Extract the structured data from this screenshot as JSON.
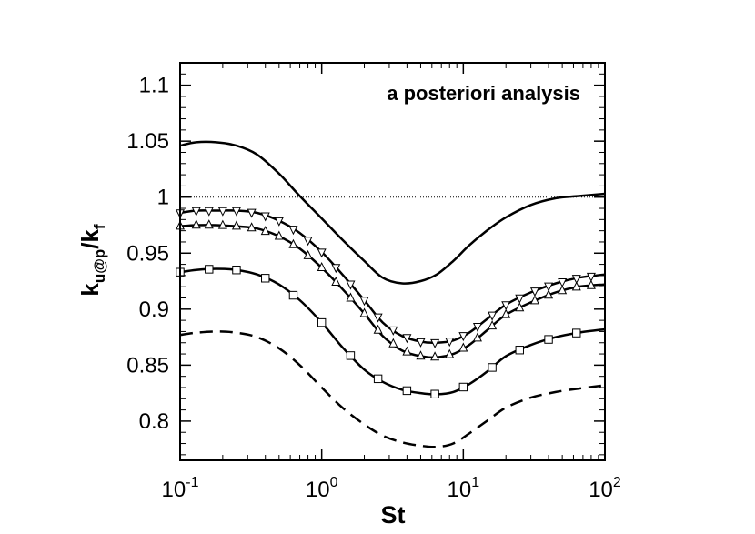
{
  "chart_data": {
    "type": "line",
    "title": "",
    "annotation": "a posteriori analysis",
    "xlabel": "St",
    "ylabel": {
      "main": "k",
      "sub1": "u@p",
      "slash": "/k",
      "sub2": "f"
    },
    "xscale": "log",
    "xlim": [
      0.1,
      100
    ],
    "ylim": [
      0.765,
      1.12
    ],
    "x_ticks": [
      {
        "value": 0.1,
        "base": "10",
        "exp": "-1"
      },
      {
        "value": 1,
        "base": "10",
        "exp": "0"
      },
      {
        "value": 10,
        "base": "10",
        "exp": "1"
      },
      {
        "value": 100,
        "base": "10",
        "exp": "2"
      }
    ],
    "y_ticks": [
      {
        "value": 0.8,
        "label": "0.8"
      },
      {
        "value": 0.85,
        "label": "0.85"
      },
      {
        "value": 0.9,
        "label": "0.9"
      },
      {
        "value": 0.95,
        "label": "0.95"
      },
      {
        "value": 1.0,
        "label": "1"
      },
      {
        "value": 1.05,
        "label": "1.05"
      },
      {
        "value": 1.1,
        "label": "1.1"
      }
    ],
    "reference_line": {
      "y": 1.0,
      "style": "dotted"
    },
    "grid": false,
    "legend": "none",
    "series": [
      {
        "style": "solid",
        "marker": "none",
        "x": [
          0.1,
          0.13,
          0.18,
          0.25,
          0.35,
          0.5,
          0.7,
          1.0,
          1.4,
          2.0,
          2.7,
          3.7,
          5.0,
          6.5,
          8.5,
          11,
          15,
          20,
          30,
          45,
          65,
          100
        ],
        "y": [
          1.046,
          1.049,
          1.049,
          1.046,
          1.038,
          1.021,
          1.001,
          0.981,
          0.962,
          0.943,
          0.928,
          0.923,
          0.925,
          0.931,
          0.943,
          0.957,
          0.971,
          0.982,
          0.993,
          0.999,
          1.001,
          1.003
        ]
      },
      {
        "style": "solid",
        "marker": "down-triangle",
        "x": [
          0.1,
          0.13,
          0.18,
          0.25,
          0.35,
          0.5,
          0.7,
          1.0,
          1.4,
          2.0,
          2.7,
          3.7,
          5.0,
          6.5,
          8.5,
          11,
          15,
          20,
          30,
          45,
          65,
          100
        ],
        "y": [
          0.986,
          0.988,
          0.988,
          0.988,
          0.986,
          0.979,
          0.968,
          0.951,
          0.931,
          0.908,
          0.888,
          0.876,
          0.871,
          0.87,
          0.872,
          0.879,
          0.892,
          0.904,
          0.915,
          0.923,
          0.928,
          0.931
        ]
      },
      {
        "style": "solid",
        "marker": "up-triangle",
        "x": [
          0.1,
          0.13,
          0.18,
          0.25,
          0.35,
          0.5,
          0.7,
          1.0,
          1.4,
          2.0,
          2.7,
          3.7,
          5.0,
          6.5,
          8.5,
          11,
          15,
          20,
          30,
          45,
          65,
          100
        ],
        "y": [
          0.974,
          0.975,
          0.975,
          0.974,
          0.972,
          0.965,
          0.954,
          0.937,
          0.918,
          0.896,
          0.876,
          0.863,
          0.858,
          0.857,
          0.86,
          0.868,
          0.882,
          0.895,
          0.906,
          0.915,
          0.92,
          0.922
        ]
      },
      {
        "style": "solid",
        "marker": "square",
        "x": [
          0.1,
          0.13,
          0.18,
          0.25,
          0.35,
          0.5,
          0.7,
          1.0,
          1.4,
          2.0,
          2.7,
          3.7,
          5.0,
          6.5,
          8.5,
          11,
          15,
          20,
          30,
          45,
          65,
          100
        ],
        "y": [
          0.933,
          0.935,
          0.936,
          0.935,
          0.931,
          0.922,
          0.908,
          0.888,
          0.866,
          0.846,
          0.835,
          0.828,
          0.825,
          0.824,
          0.826,
          0.833,
          0.845,
          0.858,
          0.868,
          0.875,
          0.879,
          0.882
        ]
      },
      {
        "style": "dashed",
        "marker": "none",
        "x": [
          0.1,
          0.13,
          0.18,
          0.25,
          0.35,
          0.5,
          0.7,
          1.0,
          1.4,
          2.0,
          2.7,
          3.7,
          5.0,
          6.5,
          8.5,
          11,
          15,
          20,
          30,
          45,
          65,
          100
        ],
        "y": [
          0.877,
          0.879,
          0.88,
          0.879,
          0.875,
          0.865,
          0.85,
          0.83,
          0.812,
          0.797,
          0.787,
          0.781,
          0.778,
          0.777,
          0.78,
          0.789,
          0.801,
          0.812,
          0.821,
          0.826,
          0.829,
          0.832
        ]
      }
    ],
    "marker_positions": {
      "down-triangle": [
        0.1,
        0.13,
        0.16,
        0.2,
        0.25,
        0.32,
        0.4,
        0.5,
        0.63,
        0.8,
        1.0,
        1.26,
        1.6,
        2.0,
        2.5,
        3.2,
        4.0,
        5.0,
        6.3,
        8.0,
        10,
        12.6,
        16,
        20,
        25,
        32,
        40,
        50,
        63,
        80
      ],
      "up-triangle": [
        0.1,
        0.13,
        0.16,
        0.2,
        0.25,
        0.32,
        0.4,
        0.5,
        0.63,
        0.8,
        1.0,
        1.26,
        1.6,
        2.0,
        2.5,
        3.2,
        4.0,
        5.0,
        6.3,
        8.0,
        10,
        12.6,
        16,
        20,
        25,
        32,
        40,
        50,
        63,
        80
      ],
      "square": [
        0.1,
        0.16,
        0.25,
        0.4,
        0.63,
        1.0,
        1.6,
        2.5,
        4.0,
        6.3,
        10,
        16,
        25,
        40,
        63
      ]
    }
  }
}
